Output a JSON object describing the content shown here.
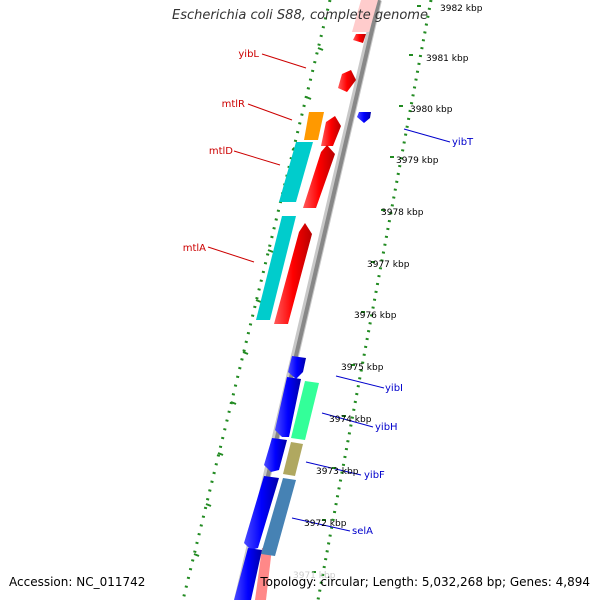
{
  "title": "Escherichia coli S88, complete genome",
  "footer": {
    "accession": "Accession: NC_011742",
    "summary": "Topology: circular; Length: 5,032,268 bp; Genes: 4,894"
  },
  "colors": {
    "backbone": "#888888",
    "tick_dots": "#228b22",
    "forward_gene": "#ff0000",
    "reverse_gene": "#0000ff",
    "forward_label": "#cc0000",
    "reverse_label": "#0000cc"
  },
  "scale_labels": [
    "3982 kbp",
    "3981 kbp",
    "3980 kbp",
    "3979 kbp",
    "3978 kbp",
    "3977 kbp",
    "3976 kbp",
    "3975 kbp",
    "3974 kbp",
    "3973 kbp",
    "3972 kbp",
    "3971 kbp"
  ],
  "gene_labels": {
    "forward": [
      "yibL",
      "mtlR",
      "mtlD",
      "mtlA"
    ],
    "reverse": [
      "yibT",
      "yibI",
      "yibH",
      "yibF",
      "selA"
    ]
  }
}
